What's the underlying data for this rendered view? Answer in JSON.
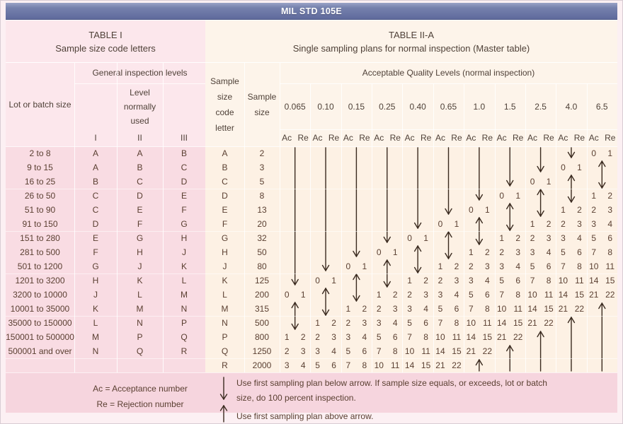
{
  "title": "MIL STD 105E",
  "table1": {
    "title": "TABLE I",
    "subtitle": "Sample size code letters"
  },
  "table2": {
    "title": "TABLE II-A",
    "subtitle": "Single sampling plans for normal inspection (Master table)"
  },
  "headers": {
    "lot": "Lot or batch size",
    "gil": "General inspection levels",
    "level_normally_used": [
      "Level",
      "normally",
      "used"
    ],
    "levels": [
      "I",
      "II",
      "III"
    ],
    "code": [
      "Sample",
      "size",
      "code",
      "letter"
    ],
    "size": [
      "Sample",
      "size"
    ],
    "aql_title": "Acceptable Quality Levels (normal inspection)",
    "aql_values": [
      "0.065",
      "0.10",
      "0.15",
      "0.25",
      "0.40",
      "0.65",
      "1.0",
      "1.5",
      "2.5",
      "4.0",
      "6.5"
    ],
    "acre": [
      "Ac",
      "Re"
    ]
  },
  "rows": [
    {
      "lot": "2 to 8",
      "levels": [
        "A",
        "A",
        "B"
      ],
      "code": "A",
      "size": "2",
      "cells": [
        null,
        null,
        null,
        null,
        null,
        null,
        null,
        null,
        null,
        null,
        [
          "0",
          "1"
        ]
      ]
    },
    {
      "lot": "9 to 15",
      "levels": [
        "A",
        "B",
        "C"
      ],
      "code": "B",
      "size": "3",
      "cells": [
        null,
        null,
        null,
        null,
        null,
        null,
        null,
        null,
        null,
        [
          "0",
          "1"
        ],
        null
      ]
    },
    {
      "lot": "16 to 25",
      "levels": [
        "B",
        "C",
        "D"
      ],
      "code": "C",
      "size": "5",
      "cells": [
        null,
        null,
        null,
        null,
        null,
        null,
        null,
        null,
        [
          "0",
          "1"
        ],
        null,
        null
      ]
    },
    {
      "lot": "26 to 50",
      "levels": [
        "C",
        "D",
        "E"
      ],
      "code": "D",
      "size": "8",
      "cells": [
        null,
        null,
        null,
        null,
        null,
        null,
        null,
        [
          "0",
          "1"
        ],
        null,
        null,
        [
          "1",
          "2"
        ]
      ]
    },
    {
      "lot": "51 to 90",
      "levels": [
        "C",
        "E",
        "F"
      ],
      "code": "E",
      "size": "13",
      "cells": [
        null,
        null,
        null,
        null,
        null,
        null,
        [
          "0",
          "1"
        ],
        null,
        null,
        [
          "1",
          "2"
        ],
        [
          "2",
          "3"
        ]
      ]
    },
    {
      "lot": "91 to 150",
      "levels": [
        "D",
        "F",
        "G"
      ],
      "code": "F",
      "size": "20",
      "cells": [
        null,
        null,
        null,
        null,
        null,
        [
          "0",
          "1"
        ],
        null,
        null,
        [
          "1",
          "2"
        ],
        [
          "2",
          "3"
        ],
        [
          "3",
          "4"
        ]
      ]
    },
    {
      "lot": "151 to 280",
      "levels": [
        "E",
        "G",
        "H"
      ],
      "code": "G",
      "size": "32",
      "cells": [
        null,
        null,
        null,
        null,
        [
          "0",
          "1"
        ],
        null,
        null,
        [
          "1",
          "2"
        ],
        [
          "2",
          "3"
        ],
        [
          "3",
          "4"
        ],
        [
          "5",
          "6"
        ]
      ]
    },
    {
      "lot": "281 to 500",
      "levels": [
        "F",
        "H",
        "J"
      ],
      "code": "H",
      "size": "50",
      "cells": [
        null,
        null,
        null,
        [
          "0",
          "1"
        ],
        null,
        null,
        [
          "1",
          "2"
        ],
        [
          "2",
          "3"
        ],
        [
          "3",
          "4"
        ],
        [
          "5",
          "6"
        ],
        [
          "7",
          "8"
        ]
      ]
    },
    {
      "lot": "501 to 1200",
      "levels": [
        "G",
        "J",
        "K"
      ],
      "code": "J",
      "size": "80",
      "cells": [
        null,
        null,
        [
          "0",
          "1"
        ],
        null,
        null,
        [
          "1",
          "2"
        ],
        [
          "2",
          "3"
        ],
        [
          "3",
          "4"
        ],
        [
          "5",
          "6"
        ],
        [
          "7",
          "8"
        ],
        [
          "10",
          "11"
        ]
      ]
    },
    {
      "lot": "1201 to 3200",
      "levels": [
        "H",
        "K",
        "L"
      ],
      "code": "K",
      "size": "125",
      "cells": [
        null,
        [
          "0",
          "1"
        ],
        null,
        null,
        [
          "1",
          "2"
        ],
        [
          "2",
          "3"
        ],
        [
          "3",
          "4"
        ],
        [
          "5",
          "6"
        ],
        [
          "7",
          "8"
        ],
        [
          "10",
          "11"
        ],
        [
          "14",
          "15"
        ]
      ]
    },
    {
      "lot": "3200 to 10000",
      "levels": [
        "J",
        "L",
        "M"
      ],
      "code": "L",
      "size": "200",
      "cells": [
        [
          "0",
          "1"
        ],
        null,
        null,
        [
          "1",
          "2"
        ],
        [
          "2",
          "3"
        ],
        [
          "3",
          "4"
        ],
        [
          "5",
          "6"
        ],
        [
          "7",
          "8"
        ],
        [
          "10",
          "11"
        ],
        [
          "14",
          "15"
        ],
        [
          "21",
          "22"
        ]
      ]
    },
    {
      "lot": "10001 to 35000",
      "levels": [
        "K",
        "M",
        "N"
      ],
      "code": "M",
      "size": "315",
      "cells": [
        null,
        null,
        [
          "1",
          "2"
        ],
        [
          "2",
          "3"
        ],
        [
          "3",
          "4"
        ],
        [
          "5",
          "6"
        ],
        [
          "7",
          "8"
        ],
        [
          "10",
          "11"
        ],
        [
          "14",
          "15"
        ],
        [
          "21",
          "22"
        ],
        null
      ]
    },
    {
      "lot": "35000 to 150000",
      "levels": [
        "L",
        "N",
        "P"
      ],
      "code": "N",
      "size": "500",
      "cells": [
        null,
        [
          "1",
          "2"
        ],
        [
          "2",
          "3"
        ],
        [
          "3",
          "4"
        ],
        [
          "5",
          "6"
        ],
        [
          "7",
          "8"
        ],
        [
          "10",
          "11"
        ],
        [
          "14",
          "15"
        ],
        [
          "21",
          "22"
        ],
        null,
        null
      ]
    },
    {
      "lot": "150001 to 500000",
      "levels": [
        "M",
        "P",
        "Q"
      ],
      "code": "P",
      "size": "800",
      "cells": [
        [
          "1",
          "2"
        ],
        [
          "2",
          "3"
        ],
        [
          "3",
          "4"
        ],
        [
          "5",
          "6"
        ],
        [
          "7",
          "8"
        ],
        [
          "10",
          "11"
        ],
        [
          "14",
          "15"
        ],
        [
          "21",
          "22"
        ],
        null,
        null,
        null
      ]
    },
    {
      "lot": "500001 and over",
      "levels": [
        "N",
        "Q",
        "R"
      ],
      "code": "Q",
      "size": "1250",
      "cells": [
        [
          "2",
          "3"
        ],
        [
          "3",
          "4"
        ],
        [
          "5",
          "6"
        ],
        [
          "7",
          "8"
        ],
        [
          "10",
          "11"
        ],
        [
          "14",
          "15"
        ],
        [
          "21",
          "22"
        ],
        null,
        null,
        null,
        null
      ]
    },
    {
      "lot": "",
      "levels": [
        "",
        "",
        ""
      ],
      "code": "R",
      "size": "2000",
      "cells": [
        [
          "3",
          "4"
        ],
        [
          "5",
          "6"
        ],
        [
          "7",
          "8"
        ],
        [
          "10",
          "11"
        ],
        [
          "14",
          "15"
        ],
        [
          "21",
          "22"
        ],
        null,
        null,
        null,
        null,
        null
      ]
    }
  ],
  "arrows": {
    "down": [
      {
        "col": 0,
        "toRow": 9
      },
      {
        "col": 1,
        "toRow": 8
      },
      {
        "col": 2,
        "toRow": 7
      },
      {
        "col": 3,
        "toRow": 6
      },
      {
        "col": 4,
        "toRow": 5
      },
      {
        "col": 5,
        "toRow": 4
      },
      {
        "col": 6,
        "toRow": 3
      },
      {
        "col": 7,
        "toRow": 2
      },
      {
        "col": 8,
        "toRow": 1
      },
      {
        "col": 9,
        "toRow": 0
      }
    ],
    "double": [
      {
        "col": 0,
        "rows": [
          11,
          12
        ]
      },
      {
        "col": 1,
        "rows": [
          10,
          11
        ]
      },
      {
        "col": 2,
        "rows": [
          9,
          10
        ]
      },
      {
        "col": 3,
        "rows": [
          8,
          9
        ]
      },
      {
        "col": 4,
        "rows": [
          7,
          8
        ]
      },
      {
        "col": 5,
        "rows": [
          6,
          7
        ]
      },
      {
        "col": 6,
        "rows": [
          5,
          6
        ]
      },
      {
        "col": 7,
        "rows": [
          4,
          5
        ]
      },
      {
        "col": 8,
        "rows": [
          3,
          4
        ]
      },
      {
        "col": 9,
        "rows": [
          2,
          3
        ]
      },
      {
        "col": 10,
        "rows": [
          1,
          2
        ]
      }
    ],
    "up": [
      {
        "col": 6,
        "fromRow": 15
      },
      {
        "col": 7,
        "fromRow": 14
      },
      {
        "col": 8,
        "fromRow": 13
      },
      {
        "col": 9,
        "fromRow": 12
      },
      {
        "col": 10,
        "fromRow": 11
      }
    ]
  },
  "footer": {
    "ac_legend": "Ac = Acceptance number",
    "re_legend": "Re = Rejection number",
    "below_line1": "Use first sampling plan below arrow. If sample size equals, or exceeds, lot or batch",
    "below_line2": "size, do 100 percent inspection.",
    "above_line": "Use first sampling plan above arrow."
  },
  "colors": {
    "titlebar": "#6b76a6",
    "pinkHeader": "#fce7ec",
    "pinkBody": "#f9dce3",
    "pinkFooter": "#f6d5de",
    "creamHeader": "#fdf4ea",
    "creamBody": "#fdf1e4",
    "textHead": "#4f4138",
    "textBody": "#5a3f31",
    "arrow": "#3a2a1f",
    "frame": "#fcf0f3"
  }
}
